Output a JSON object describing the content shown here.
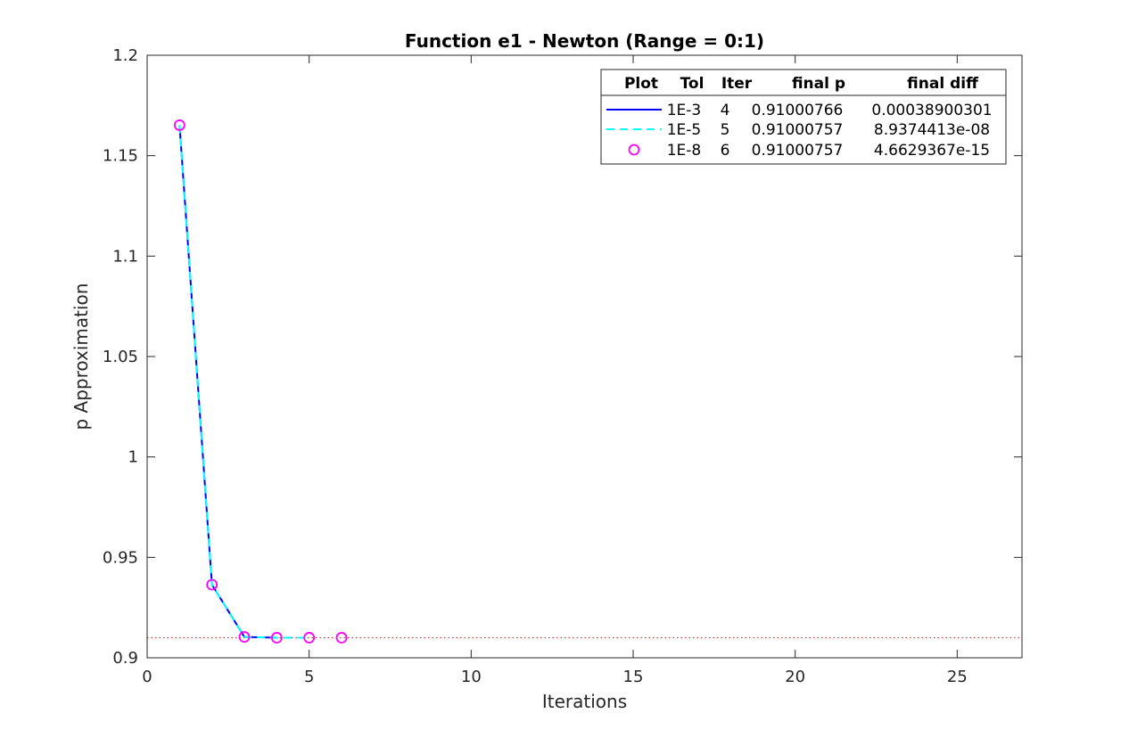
{
  "chart_data": {
    "type": "line",
    "title": "Function e1 - Newton (Range = 0:1)",
    "xlabel": "Iterations",
    "ylabel": "p Approximation",
    "xlim": [
      0,
      27
    ],
    "ylim": [
      0.9,
      1.2
    ],
    "xticks": [
      0,
      5,
      10,
      15,
      20,
      25
    ],
    "yticks": [
      0.9,
      0.95,
      1,
      1.05,
      1.1,
      1.15,
      1.2
    ],
    "grid": false,
    "legend_position": "top-right",
    "reference_line": {
      "y": 0.91000757,
      "style": "dotted",
      "color": "#cc2222"
    },
    "legend": {
      "headers": [
        "Plot",
        "Tol",
        "Iter",
        "final p",
        "final diff"
      ]
    },
    "series": [
      {
        "tol": "1E-3",
        "iter": "4",
        "final_p": "0.91000766",
        "final_diff": "0.00038900301",
        "style": "solid",
        "color": "#0000ff",
        "marker": "none",
        "x": [
          1,
          2,
          3,
          4
        ],
        "y": [
          1.1652,
          0.9364,
          0.9104,
          0.91000766
        ]
      },
      {
        "tol": "1E-5",
        "iter": "5",
        "final_p": "0.91000757",
        "final_diff": "8.9374413e-08",
        "style": "dashed",
        "color": "#00ffff",
        "marker": "none",
        "x": [
          1,
          2,
          3,
          4,
          5
        ],
        "y": [
          1.1652,
          0.9364,
          0.9104,
          0.91000766,
          0.91000757
        ]
      },
      {
        "tol": "1E-8",
        "iter": "6",
        "final_p": "0.91000757",
        "final_diff": "4.6629367e-15",
        "style": "none",
        "color": "#ff00ff",
        "marker": "circle",
        "x": [
          1,
          2,
          3,
          4,
          5,
          6
        ],
        "y": [
          1.1652,
          0.9364,
          0.9104,
          0.91000766,
          0.91000757,
          0.91000757
        ]
      }
    ]
  }
}
